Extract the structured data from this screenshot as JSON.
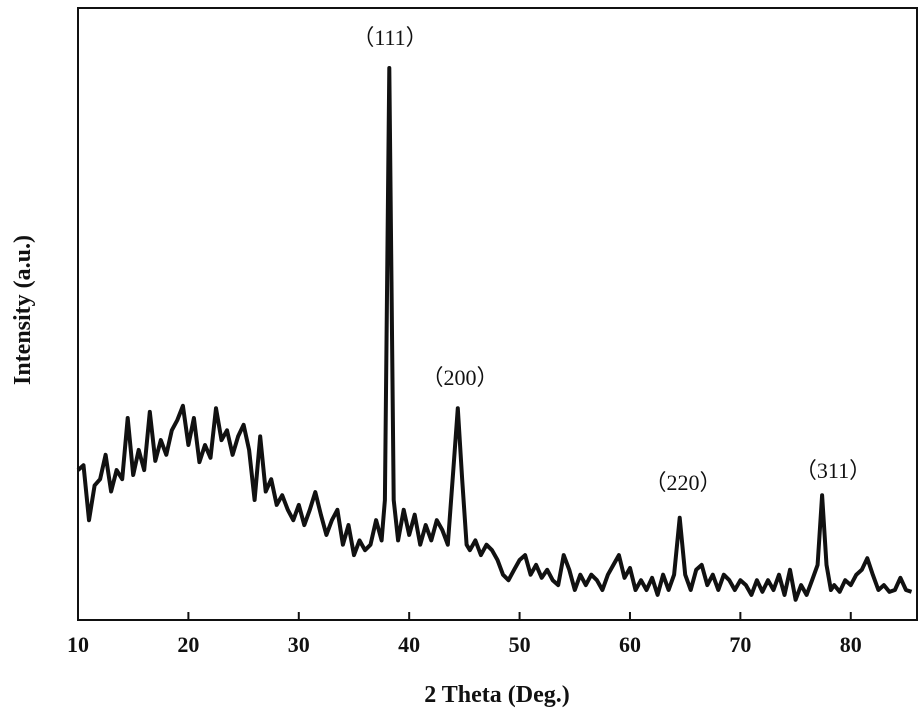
{
  "chart_data": {
    "type": "line",
    "xlabel": "2 Theta (Deg.)",
    "ylabel": "Intensity (a.u.)",
    "annotations": [
      "（111）",
      "（200）",
      "（220）",
      "（311）"
    ],
    "color": "#111111",
    "xlim": [
      10,
      86
    ],
    "ylim": [
      0,
      100
    ],
    "xticks": [
      10,
      20,
      30,
      40,
      50,
      60,
      70,
      80
    ],
    "x": [
      10,
      10.5,
      11,
      11.5,
      12,
      12.5,
      13,
      13.5,
      14,
      14.5,
      15,
      15.5,
      16,
      16.5,
      17,
      17.5,
      18,
      18.5,
      19,
      19.5,
      20,
      20.5,
      21,
      21.5,
      22,
      22.5,
      23,
      23.5,
      24,
      24.5,
      25,
      25.5,
      26,
      26.5,
      27,
      27.5,
      28,
      28.5,
      29,
      29.5,
      30,
      30.5,
      31,
      31.5,
      32,
      32.5,
      33,
      33.5,
      34,
      34.5,
      35,
      35.5,
      36,
      36.5,
      37,
      37.5,
      37.8,
      38.2,
      38.6,
      39,
      39.5,
      40,
      40.5,
      41,
      41.5,
      42,
      42.5,
      43,
      43.5,
      44,
      44.4,
      44.8,
      45.2,
      45.5,
      46,
      46.5,
      47,
      47.5,
      48,
      48.5,
      49,
      49.5,
      50,
      50.5,
      51,
      51.5,
      52,
      52.5,
      53,
      53.5,
      54,
      54.5,
      55,
      55.5,
      56,
      56.5,
      57,
      57.5,
      58,
      58.5,
      59,
      59.5,
      60,
      60.5,
      61,
      61.5,
      62,
      62.5,
      63,
      63.5,
      64,
      64.5,
      65,
      65.5,
      66,
      66.5,
      67,
      67.5,
      68,
      68.5,
      69,
      69.5,
      70,
      70.5,
      71,
      71.5,
      72,
      72.5,
      73,
      73.5,
      74,
      74.5,
      75,
      75.5,
      76,
      76.5,
      77,
      77.4,
      77.8,
      78.2,
      78.5,
      79,
      79.5,
      80,
      80.5,
      81,
      81.5,
      82,
      82.5,
      83,
      83.5,
      84,
      84.5,
      85,
      85.5
    ],
    "values": [
      24.5,
      25.3,
      16.3,
      22,
      23,
      27,
      21,
      24.5,
      23,
      33,
      23.7,
      27.8,
      24.5,
      34,
      26,
      29.4,
      27,
      31,
      32.7,
      35,
      28.6,
      33,
      25.8,
      28.6,
      26.5,
      34.6,
      29.4,
      31,
      27,
      30,
      31.9,
      27.8,
      19.6,
      30,
      21,
      23,
      18.8,
      20.4,
      18,
      16.3,
      18.8,
      15.5,
      18,
      20.9,
      17.2,
      13.9,
      16.3,
      18,
      12.3,
      15.5,
      10.6,
      13,
      11.4,
      12.3,
      16.3,
      13,
      19.6,
      90.2,
      19.6,
      13,
      18,
      13.9,
      17.2,
      12.3,
      15.5,
      13,
      16.3,
      14.7,
      12.3,
      24.5,
      34.6,
      22.9,
      12.3,
      11.4,
      13,
      10.6,
      12.3,
      11.4,
      9.8,
      7.4,
      6.5,
      8.2,
      9.8,
      10.6,
      7.4,
      9,
      6.9,
      8.2,
      6.5,
      5.7,
      10.6,
      8.2,
      4.9,
      7.4,
      5.7,
      7.4,
      6.5,
      4.9,
      7.4,
      9,
      10.6,
      6.9,
      8.5,
      4.9,
      6.5,
      4.9,
      6.9,
      4.1,
      7.4,
      4.9,
      7.4,
      16.7,
      7.4,
      4.9,
      8.2,
      9,
      5.7,
      7.4,
      4.9,
      7.4,
      6.5,
      4.9,
      6.5,
      5.7,
      4.1,
      6.5,
      4.6,
      6.5,
      4.9,
      7.4,
      4.1,
      8.2,
      3.3,
      5.7,
      4.1,
      6.5,
      9,
      20.4,
      9,
      4.9,
      5.7,
      4.6,
      6.5,
      5.7,
      7.4,
      8.2,
      10.1,
      7.4,
      4.9,
      5.7,
      4.6,
      4.9,
      6.9,
      4.9,
      4.6
    ]
  }
}
